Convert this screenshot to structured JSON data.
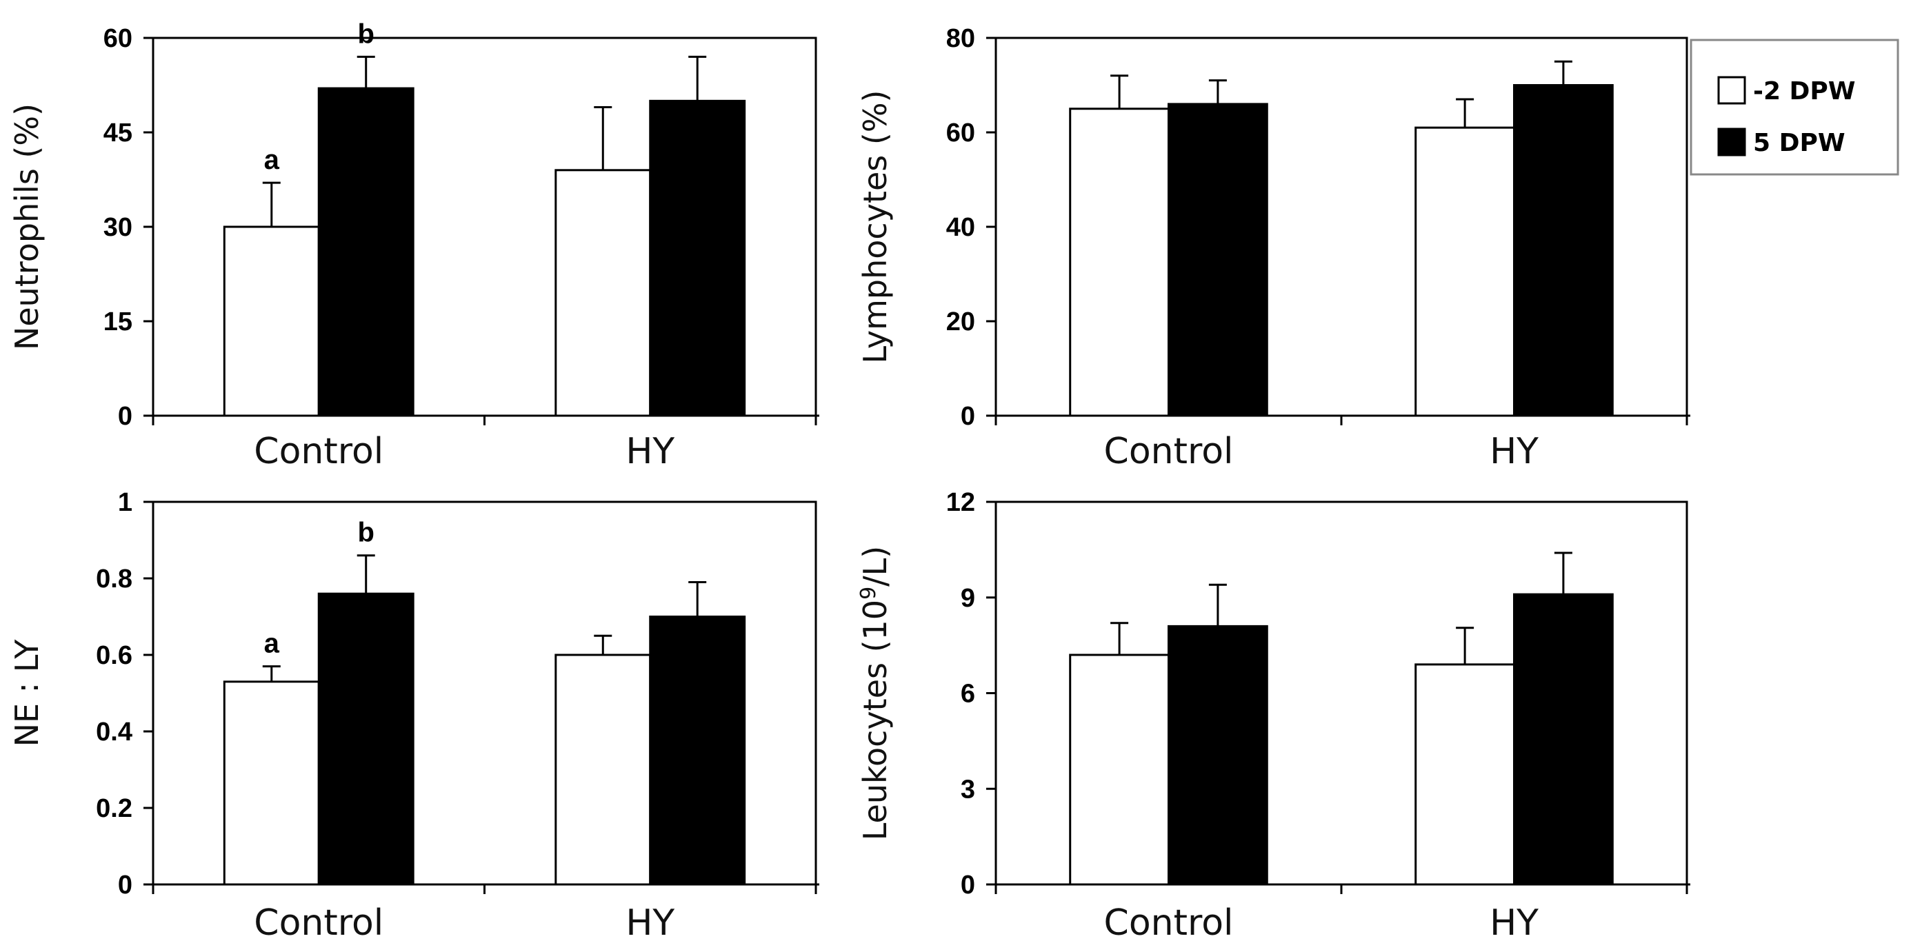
{
  "legend": {
    "position": "top-right",
    "entries": [
      {
        "label": "-2 DPW",
        "color": "#ffffff"
      },
      {
        "label": "5 DPW",
        "color": "#000000"
      }
    ]
  },
  "chart_data": [
    {
      "type": "bar",
      "ylabel": "Neutrophils (%)",
      "categories": [
        "Control",
        "HY"
      ],
      "ylim": [
        0,
        60
      ],
      "yticks": [
        0,
        15,
        30,
        45,
        60
      ],
      "ytick_labels": [
        "0",
        "15",
        "30",
        "45",
        "60"
      ],
      "series": [
        {
          "name": "-2 DPW",
          "color": "#ffffff",
          "values": [
            30,
            39
          ],
          "errors": [
            7,
            10
          ],
          "annotations": [
            "a",
            ""
          ]
        },
        {
          "name": "5 DPW",
          "color": "#000000",
          "values": [
            52,
            50
          ],
          "errors": [
            5,
            7
          ],
          "annotations": [
            "b",
            ""
          ]
        }
      ]
    },
    {
      "type": "bar",
      "ylabel": "Lymphocytes (%)",
      "categories": [
        "Control",
        "HY"
      ],
      "ylim": [
        0,
        80
      ],
      "yticks": [
        0,
        20,
        40,
        60,
        80
      ],
      "ytick_labels": [
        "0",
        "20",
        "40",
        "60",
        "80"
      ],
      "series": [
        {
          "name": "-2 DPW",
          "color": "#ffffff",
          "values": [
            65,
            61
          ],
          "errors": [
            7,
            6
          ],
          "annotations": [
            "",
            ""
          ]
        },
        {
          "name": "5 DPW",
          "color": "#000000",
          "values": [
            66,
            70
          ],
          "errors": [
            5,
            5
          ],
          "annotations": [
            "",
            ""
          ]
        }
      ]
    },
    {
      "type": "bar",
      "ylabel": "NE : LY",
      "categories": [
        "Control",
        "HY"
      ],
      "ylim": [
        0,
        1
      ],
      "yticks": [
        0,
        0.2,
        0.4,
        0.6,
        0.8,
        1
      ],
      "ytick_labels": [
        "0",
        "0.2",
        "0.4",
        "0.6",
        "0.8",
        "1"
      ],
      "series": [
        {
          "name": "-2 DPW",
          "color": "#ffffff",
          "values": [
            0.53,
            0.6
          ],
          "errors": [
            0.04,
            0.05
          ],
          "annotations": [
            "a",
            ""
          ]
        },
        {
          "name": "5 DPW",
          "color": "#000000",
          "values": [
            0.76,
            0.7
          ],
          "errors": [
            0.1,
            0.09
          ],
          "annotations": [
            "b",
            ""
          ]
        }
      ]
    },
    {
      "type": "bar",
      "ylabel": "Leukocytes (10",
      "ylabel_sup": "9",
      "ylabel_suffix": "/L)",
      "categories": [
        "Control",
        "HY"
      ],
      "ylim": [
        0,
        12
      ],
      "yticks": [
        0,
        3,
        6,
        9,
        12
      ],
      "ytick_labels": [
        "0",
        "3",
        "6",
        "9",
        "12"
      ],
      "series": [
        {
          "name": "-2 DPW",
          "color": "#ffffff",
          "values": [
            7.2,
            6.9
          ],
          "errors": [
            1.0,
            1.15
          ],
          "annotations": [
            "",
            ""
          ]
        },
        {
          "name": "5 DPW",
          "color": "#000000",
          "values": [
            8.1,
            9.1
          ],
          "errors": [
            1.3,
            1.3
          ],
          "annotations": [
            "",
            ""
          ]
        }
      ]
    }
  ]
}
